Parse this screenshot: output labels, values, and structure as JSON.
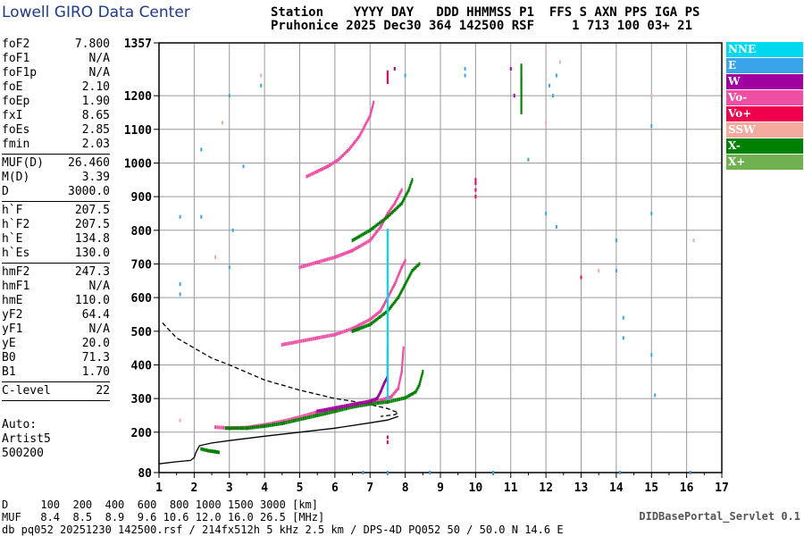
{
  "header": {
    "logo": "Lowell GIRO Data Center",
    "line1": "Station    YYYY DAY   DDD HHMMSS P1  FFS S AXN PPS IGA PS",
    "line2": "Pruhonice 2025 Dec30 364 142500 RSF     1 713 100 03+ 21"
  },
  "params": [
    {
      "label": "foF2",
      "value": "7.800"
    },
    {
      "label": "foF1",
      "value": "N/A"
    },
    {
      "label": "foF1p",
      "value": "N/A"
    },
    {
      "label": "foE",
      "value": "2.10"
    },
    {
      "label": "foEp",
      "value": "1.90"
    },
    {
      "label": "fxI",
      "value": "8.65"
    },
    {
      "label": "foEs",
      "value": "2.85"
    },
    {
      "label": "fmin",
      "value": "2.03"
    },
    {
      "label": "MUF(D)",
      "value": "26.460"
    },
    {
      "label": "M(D)",
      "value": "3.39"
    },
    {
      "label": "D",
      "value": "3000.0"
    },
    {
      "label": "h`F",
      "value": "207.5"
    },
    {
      "label": "h`F2",
      "value": "207.5"
    },
    {
      "label": "h`E",
      "value": "134.8"
    },
    {
      "label": "h`Es",
      "value": "130.0"
    },
    {
      "label": "hmF2",
      "value": "247.3"
    },
    {
      "label": "hmF1",
      "value": "N/A"
    },
    {
      "label": "hmE",
      "value": "110.0"
    },
    {
      "label": "yF2",
      "value": "64.4"
    },
    {
      "label": "yF1",
      "value": "N/A"
    },
    {
      "label": "yE",
      "value": "20.0"
    },
    {
      "label": "B0",
      "value": "71.3"
    },
    {
      "label": "B1",
      "value": "1.70"
    },
    {
      "label": "C-level",
      "value": "22"
    }
  ],
  "auto": {
    "line1": "Auto:",
    "line2": "Artist5",
    "line3": "500200"
  },
  "legend": [
    {
      "label": "NNE",
      "color": "#00d8f0"
    },
    {
      "label": "E",
      "color": "#3aa4ea"
    },
    {
      "label": "W",
      "color": "#a000a0"
    },
    {
      "label": "Vo-",
      "color": "#ee4fa4"
    },
    {
      "label": "Vo+",
      "color": "#f0004c"
    },
    {
      "label": "SSW",
      "color": "#f5aaa0"
    },
    {
      "label": "X-",
      "color": "#008000"
    },
    {
      "label": "X+",
      "color": "#70b050"
    }
  ],
  "footer": {
    "d_row": "D     100  200  400  600  800 1000 1500 3000 [km]",
    "muf_row": "MUF   8.4  8.5  8.9  9.6 10.6 12.0 16.0 26.5 [MHz]",
    "info": "db pq052 20251230 142500.rsf / 214fx512h 5 kHz 2.5 km / DPS-4D PQ052 50 / 50.0 N 14.6 E",
    "servlet": "DIDBasePortal_Servlet 0.1"
  },
  "chart_data": {
    "type": "scatter",
    "x_ticks": [
      "1",
      "2",
      "3",
      "4",
      "5",
      "6",
      "7",
      "8",
      "9",
      "10",
      "11",
      "12",
      "13",
      "14",
      "15",
      "16",
      "17"
    ],
    "y_ticks": [
      "80",
      "200",
      "300",
      "400",
      "500",
      "600",
      "700",
      "800",
      "900",
      "1000",
      "1100",
      "1200",
      "1357"
    ],
    "xlim": [
      1,
      17
    ],
    "ylim": [
      80,
      1357
    ],
    "grid": true,
    "profile_curve": [
      [
        1,
        106
      ],
      [
        1.5,
        112
      ],
      [
        1.9,
        116
      ],
      [
        2.0,
        125
      ],
      [
        2.05,
        140
      ],
      [
        2.15,
        160
      ],
      [
        2.5,
        168
      ],
      [
        3,
        175
      ],
      [
        4,
        188
      ],
      [
        5,
        200
      ],
      [
        6,
        212
      ],
      [
        7,
        228
      ],
      [
        7.5,
        236
      ],
      [
        7.8,
        247
      ]
    ],
    "model_dashed": [
      [
        1.1,
        525
      ],
      [
        1.5,
        480
      ],
      [
        2,
        450
      ],
      [
        2.5,
        420
      ],
      [
        3,
        400
      ],
      [
        4,
        355
      ],
      [
        5,
        325
      ],
      [
        6,
        300
      ],
      [
        6.5,
        292
      ],
      [
        7,
        282
      ],
      [
        7.5,
        270
      ],
      [
        7.8,
        258
      ],
      [
        7.7,
        252
      ],
      [
        7.3,
        247
      ]
    ],
    "traces": [
      {
        "series": "Vo-",
        "points": [
          [
            2.6,
            215
          ],
          [
            3,
            212
          ],
          [
            3.5,
            214
          ],
          [
            4,
            222
          ],
          [
            4.5,
            232
          ],
          [
            5,
            245
          ],
          [
            5.5,
            260
          ],
          [
            6,
            270
          ],
          [
            6.5,
            282
          ],
          [
            7,
            290
          ],
          [
            7.3,
            295
          ],
          [
            7.6,
            305
          ],
          [
            7.8,
            330
          ],
          [
            7.9,
            380
          ],
          [
            7.95,
            450
          ]
        ]
      },
      {
        "series": "X-",
        "points": [
          [
            2.9,
            212
          ],
          [
            3.5,
            212
          ],
          [
            4,
            218
          ],
          [
            4.5,
            226
          ],
          [
            5,
            238
          ],
          [
            5.5,
            250
          ],
          [
            6,
            262
          ],
          [
            6.5,
            275
          ],
          [
            7,
            284
          ],
          [
            7.5,
            290
          ],
          [
            8,
            302
          ],
          [
            8.3,
            320
          ],
          [
            8.4,
            340
          ],
          [
            8.5,
            380
          ]
        ]
      },
      {
        "series": "W",
        "points": [
          [
            5.5,
            262
          ],
          [
            6,
            272
          ],
          [
            6.5,
            282
          ],
          [
            7,
            292
          ],
          [
            7.2,
            300
          ],
          [
            7.3,
            320
          ],
          [
            7.4,
            345
          ],
          [
            7.5,
            365
          ],
          [
            7.5,
            450
          ]
        ]
      },
      {
        "series": "Vo-",
        "points": [
          [
            4.5,
            460
          ],
          [
            5,
            470
          ],
          [
            5.5,
            480
          ],
          [
            6,
            490
          ],
          [
            6.5,
            508
          ],
          [
            7,
            535
          ],
          [
            7.3,
            560
          ],
          [
            7.5,
            600
          ],
          [
            7.7,
            640
          ],
          [
            7.9,
            690
          ],
          [
            8,
            710
          ]
        ]
      },
      {
        "series": "X-",
        "points": [
          [
            6.5,
            500
          ],
          [
            7,
            520
          ],
          [
            7.5,
            560
          ],
          [
            7.8,
            600
          ],
          [
            8,
            640
          ],
          [
            8.2,
            680
          ],
          [
            8.4,
            700
          ]
        ]
      },
      {
        "series": "Vo-",
        "points": [
          [
            5,
            690
          ],
          [
            5.5,
            705
          ],
          [
            6,
            720
          ],
          [
            6.5,
            740
          ],
          [
            7,
            770
          ],
          [
            7.3,
            810
          ],
          [
            7.5,
            850
          ],
          [
            7.7,
            880
          ],
          [
            7.9,
            920
          ]
        ]
      },
      {
        "series": "X-",
        "points": [
          [
            6.5,
            770
          ],
          [
            7,
            800
          ],
          [
            7.5,
            840
          ],
          [
            7.9,
            880
          ],
          [
            8.1,
            920
          ],
          [
            8.2,
            950
          ]
        ]
      },
      {
        "series": "Vo-",
        "points": [
          [
            5.2,
            960
          ],
          [
            5.5,
            975
          ],
          [
            5.8,
            990
          ],
          [
            6.1,
            1010
          ],
          [
            6.4,
            1040
          ],
          [
            6.7,
            1080
          ],
          [
            7,
            1140
          ],
          [
            7.1,
            1180
          ]
        ]
      },
      {
        "series": "X-",
        "points": [
          [
            11.3,
            1150
          ],
          [
            11.3,
            1200
          ],
          [
            11.3,
            1250
          ],
          [
            11.3,
            1290
          ]
        ]
      },
      {
        "series": "X-",
        "points": [
          [
            2.2,
            150
          ],
          [
            2.4,
            145
          ],
          [
            2.6,
            142
          ],
          [
            2.7,
            140
          ]
        ]
      },
      {
        "series": "NNE",
        "points": [
          [
            7.5,
            300
          ],
          [
            7.5,
            400
          ],
          [
            7.5,
            480
          ],
          [
            7.5,
            560
          ],
          [
            7.5,
            640
          ],
          [
            7.5,
            720
          ],
          [
            7.5,
            800
          ]
        ]
      },
      {
        "series": "Vo+",
        "points": [
          [
            7.5,
            1240
          ],
          [
            7.5,
            1270
          ]
        ]
      }
    ],
    "scatter": [
      {
        "series": "E",
        "points": [
          [
            3.0,
            1200
          ],
          [
            2.2,
            1040
          ],
          [
            3.4,
            990
          ],
          [
            1.6,
            840
          ],
          [
            2.2,
            840
          ],
          [
            3.1,
            800
          ],
          [
            3.0,
            690
          ],
          [
            1.6,
            640
          ],
          [
            1.6,
            610
          ],
          [
            3.9,
            1230
          ],
          [
            12.1,
            1230
          ],
          [
            12.2,
            1200
          ],
          [
            11.5,
            1010
          ],
          [
            12.0,
            850
          ],
          [
            12.3,
            810
          ],
          [
            14.0,
            770
          ],
          [
            14.0,
            680
          ],
          [
            14.2,
            540
          ],
          [
            14.2,
            480
          ],
          [
            15.0,
            430
          ],
          [
            15.1,
            310
          ],
          [
            15.0,
            850
          ],
          [
            15.0,
            1110
          ],
          [
            16.1,
            80
          ],
          [
            14.1,
            80
          ],
          [
            7.5,
            80
          ],
          [
            6.8,
            80
          ],
          [
            8.7,
            80
          ],
          [
            10.5,
            80
          ],
          [
            9.7,
            1280
          ],
          [
            9.7,
            1260
          ],
          [
            8.0,
            1260
          ],
          [
            12.3,
            1260
          ]
        ]
      },
      {
        "series": "Vo+",
        "points": [
          [
            10.0,
            900
          ],
          [
            10.0,
            920
          ],
          [
            10.0,
            940
          ],
          [
            10.0,
            950
          ],
          [
            13.0,
            660
          ],
          [
            7.5,
            185
          ],
          [
            7.5,
            170
          ]
        ]
      },
      {
        "series": "SSW",
        "points": [
          [
            1.6,
            235
          ],
          [
            2.8,
            1120
          ],
          [
            3.9,
            1260
          ],
          [
            12.0,
            1120
          ],
          [
            12.4,
            1300
          ],
          [
            13.5,
            680
          ],
          [
            15.0,
            1200
          ],
          [
            16.2,
            770
          ],
          [
            2.6,
            720
          ]
        ]
      },
      {
        "series": "W",
        "points": [
          [
            7.7,
            1280
          ],
          [
            11.0,
            1280
          ],
          [
            11.1,
            1200
          ]
        ]
      }
    ]
  }
}
